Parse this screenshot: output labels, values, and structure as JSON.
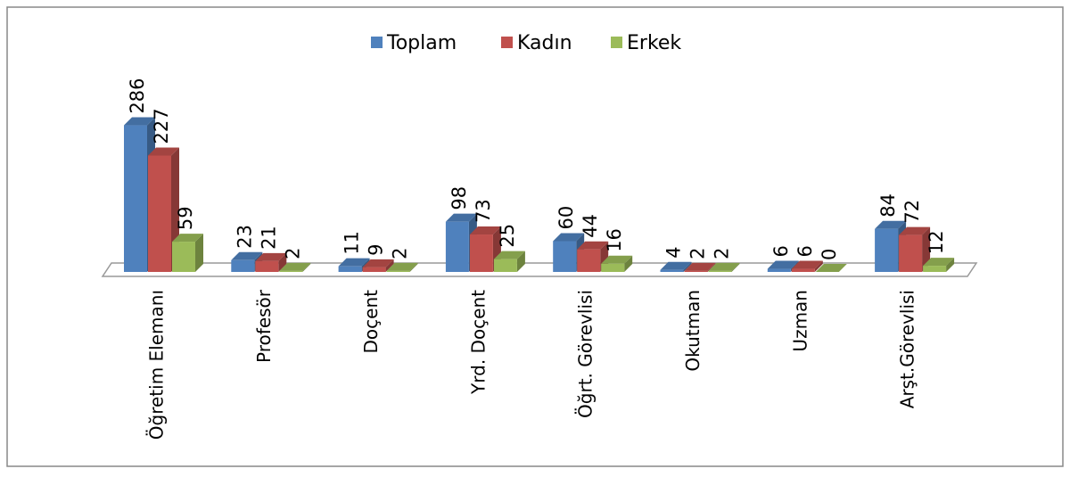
{
  "chart_data": {
    "type": "bar3d",
    "categories": [
      "Öğretim Elemanı",
      "Profesör",
      "Doçent",
      "Yrd. Doçent",
      "Öğrt. Görevlisi",
      "Okutman",
      "Uzman",
      "Arşt.Görevlisi"
    ],
    "series": [
      {
        "name": "Toplam",
        "color": "#4f81bd",
        "values": [
          286,
          23,
          11,
          98,
          60,
          4,
          6,
          84
        ]
      },
      {
        "name": "Kadın",
        "color": "#c0504d",
        "values": [
          227,
          21,
          9,
          73,
          44,
          2,
          6,
          72
        ]
      },
      {
        "name": "Erkek",
        "color": "#9bbb59",
        "values": [
          59,
          2,
          2,
          25,
          16,
          2,
          0,
          12
        ]
      }
    ],
    "legend": "top"
  }
}
